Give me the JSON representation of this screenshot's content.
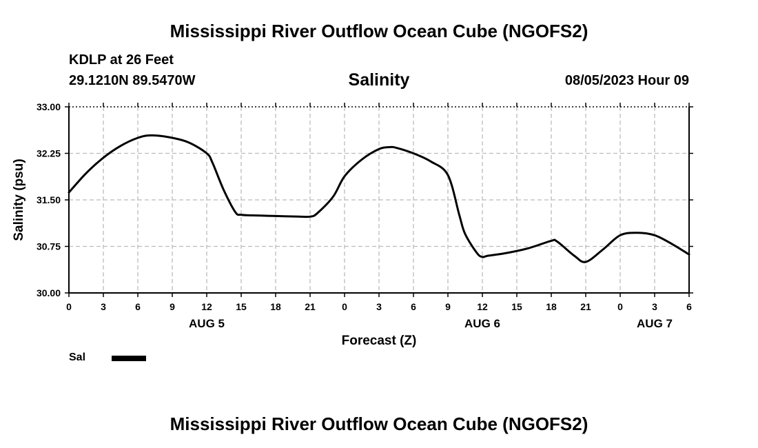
{
  "page": {
    "title": "Mississippi River Outflow Ocean Cube (NGOFS2)",
    "station_name": "KDLP at 26 Feet",
    "station_coords": "29.1210N  89.5470W",
    "date_stamp": "08/05/2023 Hour 09",
    "footer_title": "Mississippi River Outflow Ocean Cube (NGOFS2)"
  },
  "chart_data": {
    "type": "line",
    "title": "Salinity",
    "xlabel": "Forecast (Z)",
    "ylabel": "Salinity (psu)",
    "ylim": [
      30.0,
      33.0
    ],
    "xlim": [
      0,
      54
    ],
    "y_ticks": [
      "30.00",
      "30.75",
      "31.50",
      "32.25",
      "33.00"
    ],
    "x_ticks": [
      "0",
      "3",
      "6",
      "9",
      "12",
      "15",
      "18",
      "21",
      "0",
      "3",
      "6",
      "9",
      "12",
      "15",
      "18",
      "21",
      "0",
      "3",
      "6"
    ],
    "day_labels": [
      {
        "label": "AUG 5",
        "hour": 12
      },
      {
        "label": "AUG 6",
        "hour": 36
      },
      {
        "label": "AUG 7",
        "hour": 51
      }
    ],
    "grid": true,
    "legend": {
      "position": "bottom-left",
      "entries": [
        {
          "name": "Sal",
          "color": "#000000"
        }
      ]
    },
    "series": [
      {
        "name": "Sal",
        "color": "#000000",
        "x": [
          0,
          1.5,
          3,
          4.5,
          6,
          7.2,
          9,
          10.5,
          12,
          12.5,
          13.5,
          14.5,
          15,
          16,
          18,
          20,
          21,
          21.6,
          23,
          24,
          25.5,
          27,
          27.9,
          28.5,
          30,
          31.5,
          33,
          34,
          34.5,
          35.5,
          36,
          36.5,
          38,
          40,
          42,
          42.5,
          44,
          45,
          46.5,
          48,
          49.5,
          51,
          52.5,
          54
        ],
        "y": [
          31.62,
          31.93,
          32.18,
          32.37,
          32.5,
          32.54,
          32.5,
          32.42,
          32.25,
          32.1,
          31.65,
          31.3,
          31.26,
          31.25,
          31.24,
          31.23,
          31.23,
          31.28,
          31.55,
          31.88,
          32.15,
          32.32,
          32.35,
          32.34,
          32.25,
          32.12,
          31.9,
          31.25,
          30.95,
          30.65,
          30.58,
          30.6,
          30.64,
          30.72,
          30.84,
          30.83,
          30.6,
          30.5,
          30.7,
          30.93,
          30.97,
          30.93,
          30.79,
          30.62
        ]
      }
    ]
  }
}
